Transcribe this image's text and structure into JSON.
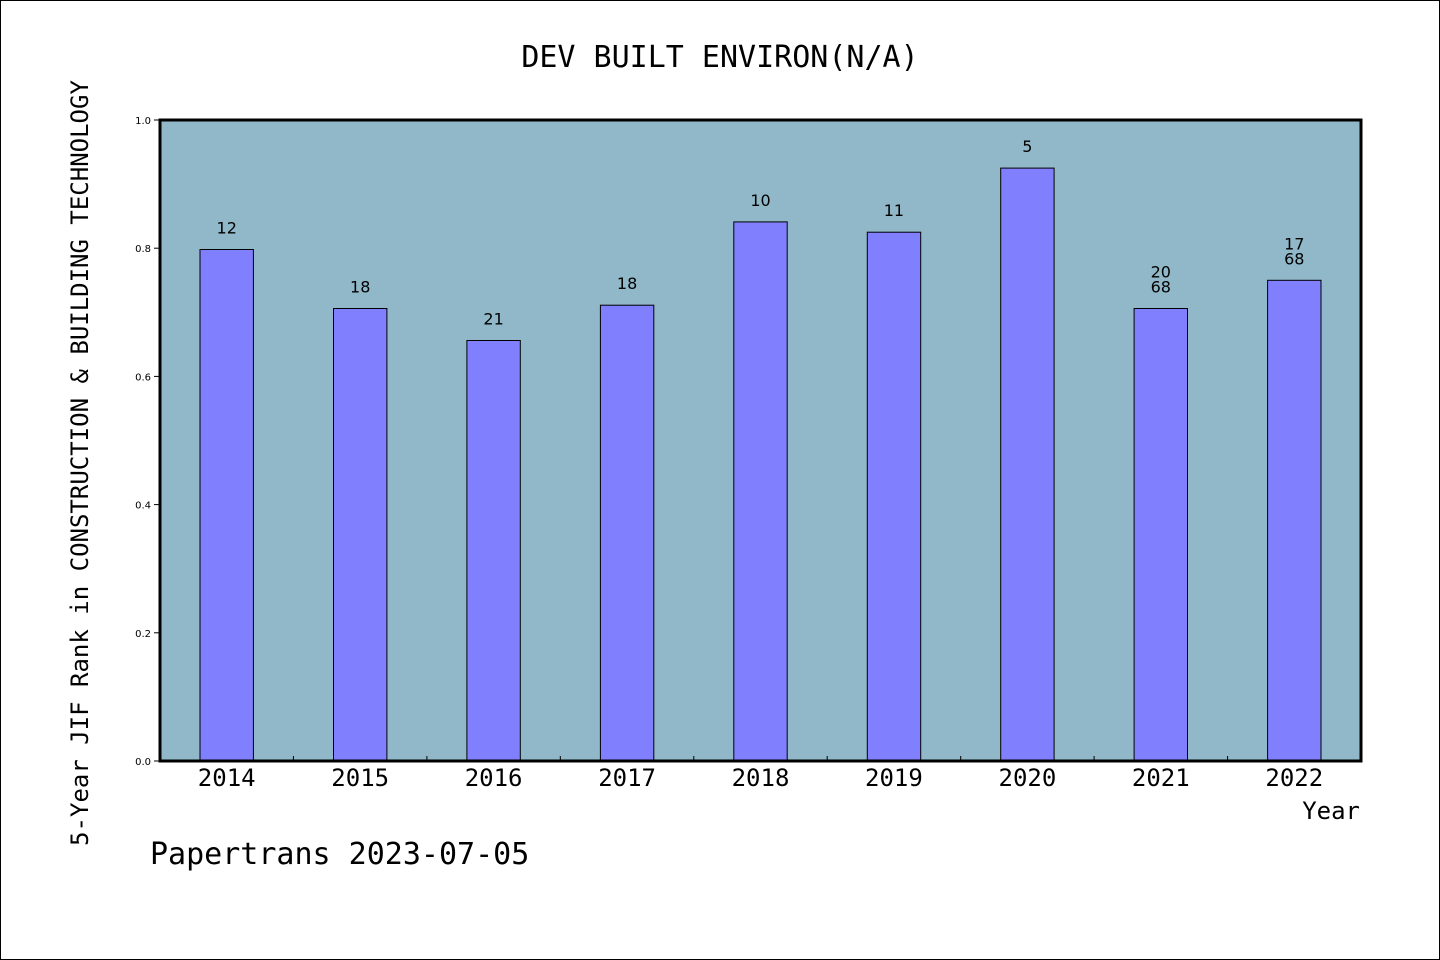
{
  "chart_data": {
    "type": "bar",
    "title": "DEV BUILT ENVIRON(N/A)",
    "xlabel": "Year",
    "ylabel": "5-Year JIF Rank in CONSTRUCTION & BUILDING TECHNOLOGY",
    "categories": [
      "2014",
      "2015",
      "2016",
      "2017",
      "2018",
      "2019",
      "2020",
      "2021",
      "2022"
    ],
    "values": [
      0.798,
      0.706,
      0.656,
      0.711,
      0.841,
      0.825,
      0.925,
      0.706,
      0.75
    ],
    "bar_labels": [
      [
        "12"
      ],
      [
        "18"
      ],
      [
        "21"
      ],
      [
        "18"
      ],
      [
        "10"
      ],
      [
        "11"
      ],
      [
        "5"
      ],
      [
        "20",
        "68"
      ],
      [
        "17",
        "68"
      ]
    ],
    "yticks": [
      "0.0",
      "0.2",
      "0.4",
      "0.6",
      "0.8",
      "1.0"
    ],
    "ylim": [
      0,
      1.0
    ],
    "grid": false,
    "colors": {
      "plot_background": "#90b8c8",
      "bar_fill": "#8080ff",
      "axis": "#000000"
    }
  },
  "footer": {
    "credit": "Papertrans 2023-07-05"
  }
}
